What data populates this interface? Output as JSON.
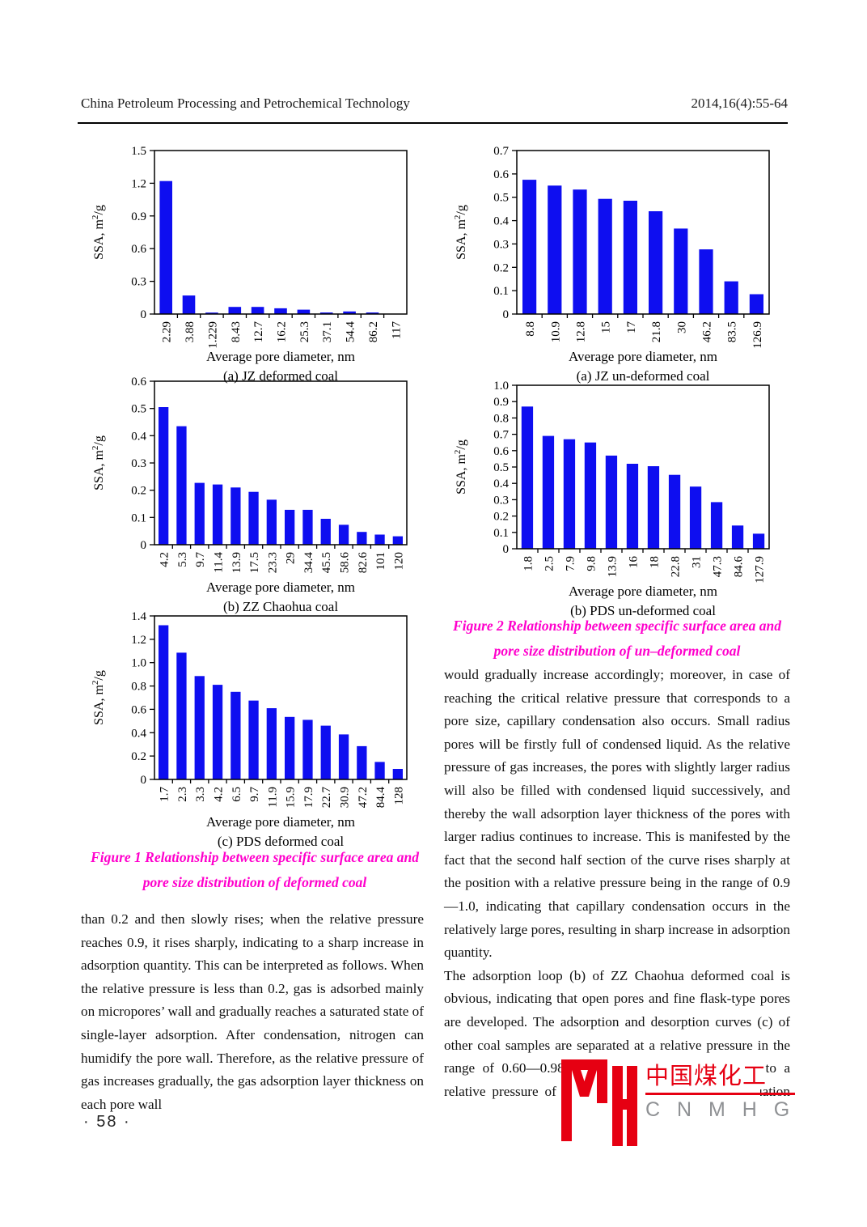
{
  "header": {
    "journal": "China Petroleum Processing and Petrochemical Technology",
    "issue": "2014,16(4):55-64"
  },
  "page_number": "·  58  ·",
  "colors": {
    "bar": "#0e0ef0",
    "caption": "#ff00cc",
    "logo_red": "#e60012",
    "logo_gray": "#8f9194"
  },
  "figure1": {
    "caption_line1": "Figure 1  Relationship between specific surface area and",
    "caption_line2": "pore size distribution of deformed coal"
  },
  "figure2": {
    "caption_line1": "Figure 2  Relationship between specific surface area and",
    "caption_line2": "pore size distribution of un–deformed coal"
  },
  "body": {
    "left_column": "than 0.2 and then slowly rises; when the relative pressure reaches 0.9, it rises sharply, indicating to a sharp increase in adsorption quantity. This can be interpreted as follows. When the relative pressure is less than 0.2, gas is adsorbed mainly on micropores’ wall and gradually reaches a saturated state of single-layer adsorption. After condensation, nitrogen can humidify the pore wall. Therefore, as the relative pressure of gas increases gradually, the gas adsorption layer thickness on each pore wall",
    "right_p1": "would gradually increase accordingly; moreover, in case of reaching the critical relative pressure that corresponds to a pore size, capillary condensation also occurs. Small radius pores will be firstly full of condensed liquid. As the relative pressure of gas increases, the pores with slightly larger radius will also be filled with condensed liquid successively, and thereby the wall adsorption layer thickness of the pores with larger radius continues to increase. This is manifested by the fact that the second half section of the curve rises sharply at the position with a relative pressure being in the range of 0.9—1.0, indicating that capillary condensation occurs in the relatively large pores, resulting in sharp increase in adsorption quantity.",
    "right_p2a": "The adsorption loop (b) of ZZ Chaohua deformed coal is obvious, indicating that open pores and fine flask-type pores are developed. The adsorption and desorption curves (c) of other coal samples are separated at a relative pressure in the range of 0.60—0.98. The pore radius corresponding to a relative pressure of 0.60 calculated as per Kelvin equation",
    "right_p2b": "the relatively"
  },
  "logo": {
    "cn": "中国煤化工",
    "latin": "C N M H G"
  },
  "chart_data": [
    {
      "type": "bar",
      "sublabel": "(a) JZ deformed coal",
      "xlabel": "Average pore diameter, nm",
      "ylabel": "SSA, m²/g",
      "ylim": [
        0,
        1.5
      ],
      "yticks": [
        "0",
        "0.3",
        "0.6",
        "0.9",
        "1.2",
        "1.5"
      ],
      "categories": [
        "2.29",
        "3.88",
        "1.229",
        "8.43",
        "12.7",
        "16.2",
        "25.3",
        "37.1",
        "54.4",
        "86.2",
        "117"
      ],
      "values": [
        1.22,
        0.17,
        0.013,
        0.065,
        0.065,
        0.053,
        0.04,
        0.014,
        0.024,
        0.014,
        0.004
      ],
      "grid": false,
      "legend": "none"
    },
    {
      "type": "bar",
      "sublabel": "(b) ZZ Chaohua coal",
      "xlabel": "Average pore diameter, nm",
      "ylabel": "SSA, m²/g",
      "ylim": [
        0,
        0.6
      ],
      "yticks": [
        "0",
        "0.1",
        "0.2",
        "0.3",
        "0.4",
        "0.5",
        "0.6"
      ],
      "categories": [
        "4.2",
        "5.3",
        "9.7",
        "11.4",
        "13.9",
        "17.5",
        "23.3",
        "29",
        "34.4",
        "45.5",
        "58.6",
        "82.6",
        "101",
        "120"
      ],
      "values": [
        0.505,
        0.435,
        0.227,
        0.221,
        0.21,
        0.194,
        0.165,
        0.128,
        0.128,
        0.095,
        0.073,
        0.047,
        0.037,
        0.031
      ],
      "grid": false,
      "legend": "none"
    },
    {
      "type": "bar",
      "sublabel": "(c) PDS deformed coal",
      "xlabel": "Average pore diameter, nm",
      "ylabel": "SSA, m²/g",
      "ylim": [
        0,
        1.4
      ],
      "yticks": [
        "0",
        "0.2",
        "0.4",
        "0.6",
        "0.8",
        "1.0",
        "1.2",
        "1.4"
      ],
      "categories": [
        "1.7",
        "2.3",
        "3.3",
        "4.2",
        "6.5",
        "9.7",
        "11.9",
        "15.9",
        "17.9",
        "22.7",
        "30.9",
        "47.2",
        "84.4",
        "128"
      ],
      "values": [
        1.32,
        1.085,
        0.885,
        0.81,
        0.75,
        0.675,
        0.61,
        0.535,
        0.51,
        0.46,
        0.385,
        0.285,
        0.15,
        0.09
      ],
      "grid": false,
      "legend": "none"
    },
    {
      "type": "bar",
      "sublabel": "(a) JZ un-deformed coal",
      "xlabel": "Average pore diameter, nm",
      "ylabel": "SSA, m²/g",
      "ylim": [
        0,
        0.7
      ],
      "yticks": [
        "0",
        "0.1",
        "0.2",
        "0.3",
        "0.4",
        "0.5",
        "0.6",
        "0.7"
      ],
      "categories": [
        "8.8",
        "10.9",
        "12.8",
        "15",
        "17",
        "21.8",
        "30",
        "46.2",
        "83.5",
        "126.9"
      ],
      "values": [
        0.575,
        0.55,
        0.533,
        0.493,
        0.485,
        0.44,
        0.366,
        0.277,
        0.14,
        0.085
      ],
      "grid": false,
      "legend": "none"
    },
    {
      "type": "bar",
      "sublabel": "(b) PDS un-deformed coal",
      "xlabel": "Average pore diameter, nm",
      "ylabel": "SSA, m²/g",
      "ylim": [
        0,
        1.0
      ],
      "yticks": [
        "0",
        "0.1",
        "0.2",
        "0.3",
        "0.4",
        "0.5",
        "0.6",
        "0.7",
        "0.8",
        "0.9",
        "1.0"
      ],
      "categories": [
        "1.8",
        "2.5",
        "7.9",
        "9.8",
        "13.9",
        "16",
        "18",
        "22.8",
        "31",
        "47.3",
        "84.6",
        "127.9"
      ],
      "values": [
        0.87,
        0.69,
        0.67,
        0.65,
        0.57,
        0.52,
        0.505,
        0.452,
        0.38,
        0.285,
        0.142,
        0.092
      ],
      "grid": false,
      "legend": "none"
    }
  ]
}
